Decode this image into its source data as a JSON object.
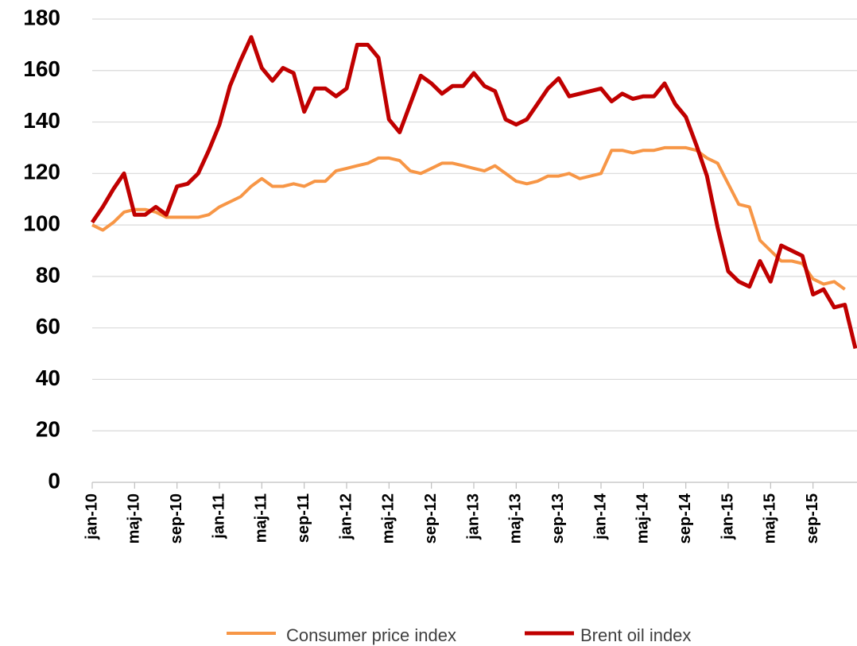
{
  "chart_data": {
    "type": "line",
    "categories": [
      "jan-10",
      null,
      null,
      null,
      "maj-10",
      null,
      null,
      null,
      "sep-10",
      null,
      null,
      null,
      "jan-11",
      null,
      null,
      null,
      "maj-11",
      null,
      null,
      null,
      "sep-11",
      null,
      null,
      null,
      "jan-12",
      null,
      null,
      null,
      "maj-12",
      null,
      null,
      null,
      "sep-12",
      null,
      null,
      null,
      "jan-13",
      null,
      null,
      null,
      "maj-13",
      null,
      null,
      null,
      "sep-13",
      null,
      null,
      null,
      "jan-14",
      null,
      null,
      null,
      "maj-14",
      null,
      null,
      null,
      "sep-14",
      null,
      null,
      null,
      "jan-15",
      null,
      null,
      null,
      "maj-15",
      null,
      null,
      null,
      "sep-15",
      null,
      null,
      null,
      null
    ],
    "series": [
      {
        "name": "Consumer price index",
        "color": "#f79646",
        "values": [
          100,
          98,
          101,
          105,
          106,
          106,
          105,
          103,
          103,
          103,
          103,
          104,
          107,
          109,
          111,
          115,
          118,
          115,
          115,
          116,
          115,
          117,
          117,
          121,
          122,
          123,
          124,
          126,
          126,
          125,
          121,
          120,
          122,
          124,
          124,
          123,
          122,
          121,
          123,
          120,
          117,
          116,
          117,
          119,
          119,
          120,
          118,
          119,
          120,
          129,
          129,
          128,
          129,
          129,
          130,
          130,
          130,
          129,
          126,
          124,
          116,
          108,
          107,
          94,
          90,
          86,
          86,
          85,
          79,
          77,
          78,
          75,
          null
        ]
      },
      {
        "name": "Brent oil index",
        "color": "#c00000",
        "values": [
          101,
          107,
          114,
          120,
          104,
          104,
          107,
          104,
          115,
          116,
          120,
          129,
          139,
          154,
          164,
          173,
          161,
          156,
          161,
          159,
          144,
          153,
          153,
          150,
          153,
          170,
          170,
          165,
          141,
          136,
          147,
          158,
          155,
          151,
          154,
          154,
          159,
          154,
          152,
          141,
          139,
          141,
          147,
          153,
          157,
          150,
          151,
          152,
          153,
          148,
          151,
          149,
          150,
          150,
          155,
          147,
          142,
          131,
          119,
          99,
          82,
          78,
          76,
          86,
          78,
          92,
          90,
          88,
          73,
          75,
          68,
          69,
          52
        ]
      }
    ],
    "ylim": [
      0,
      180
    ],
    "yticks": [
      0,
      20,
      40,
      60,
      80,
      100,
      120,
      140,
      160,
      180
    ],
    "grid": true
  }
}
